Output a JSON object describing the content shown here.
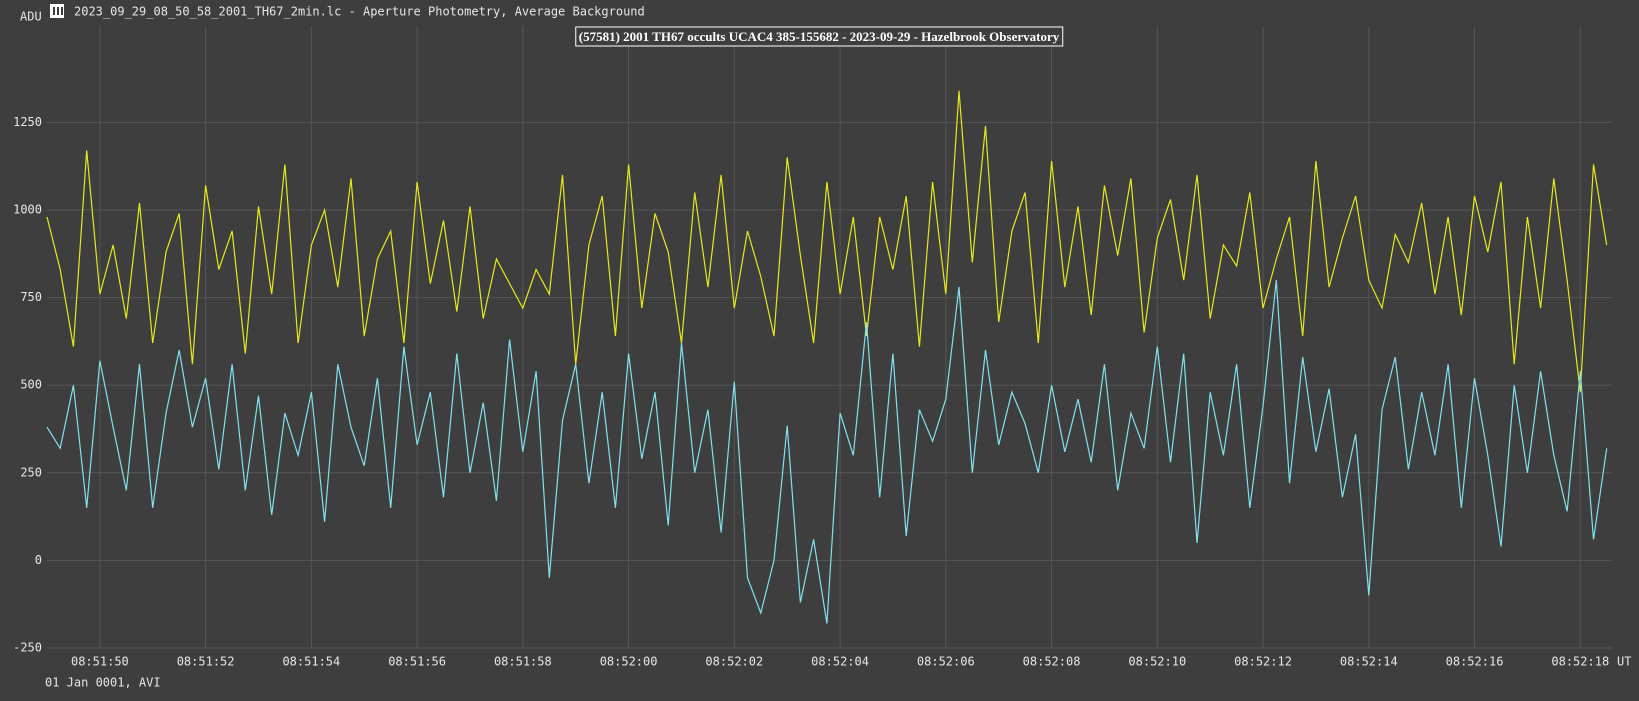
{
  "window_title": "2023_09_29_08_50_58_2001_TH67_2min.lc - Aperture Photometry, Average Background",
  "footer": "01 Jan 0001, AVI",
  "chart_data": {
    "type": "line",
    "title": "(57581) 2001 TH67 occults UCAC4 385-155682 - 2023-09-29 - Hazelbrook Observatory",
    "y_label": "ADU",
    "x_label": "UT",
    "x": [
      31909,
      31909.25,
      31909.5,
      31909.75,
      31910,
      31910.25,
      31910.5,
      31910.75,
      31911,
      31911.25,
      31911.5,
      31911.75,
      31912,
      31912.25,
      31912.5,
      31912.75,
      31913,
      31913.25,
      31913.5,
      31913.75,
      31914,
      31914.25,
      31914.5,
      31914.75,
      31915,
      31915.25,
      31915.5,
      31915.75,
      31916,
      31916.25,
      31916.5,
      31916.75,
      31917,
      31917.25,
      31917.5,
      31917.75,
      31918,
      31918.25,
      31918.5,
      31918.75,
      31919,
      31919.25,
      31919.5,
      31919.75,
      31920,
      31920.25,
      31920.5,
      31920.75,
      31921,
      31921.25,
      31921.5,
      31921.75,
      31922,
      31922.25,
      31922.5,
      31922.75,
      31923,
      31923.25,
      31923.5,
      31923.75,
      31924,
      31924.25,
      31924.5,
      31924.75,
      31925,
      31925.25,
      31925.5,
      31925.75,
      31926,
      31926.25,
      31926.5,
      31926.75,
      31927,
      31927.25,
      31927.5,
      31927.75,
      31928,
      31928.25,
      31928.5,
      31928.75,
      31929,
      31929.25,
      31929.5,
      31929.75,
      31930,
      31930.25,
      31930.5,
      31930.75,
      31931,
      31931.25,
      31931.5,
      31931.75,
      31932,
      31932.25,
      31932.5,
      31932.75,
      31933,
      31933.25,
      31933.5,
      31933.75,
      31934,
      31934.25,
      31934.5,
      31934.75,
      31935,
      31935.25,
      31935.5,
      31935.75,
      31936,
      31936.25,
      31936.5,
      31936.75,
      31937,
      31937.25,
      31937.5,
      31937.75,
      31938,
      31938.25,
      31938.5
    ],
    "series": [
      {
        "color": "#e8e81a",
        "values": [
          980,
          830,
          610,
          1170,
          760,
          900,
          690,
          1020,
          620,
          880,
          990,
          560,
          1070,
          830,
          940,
          590,
          1010,
          760,
          1130,
          620,
          900,
          1000,
          780,
          1090,
          640,
          860,
          940,
          620,
          1080,
          790,
          970,
          710,
          1010,
          690,
          860,
          790,
          720,
          830,
          760,
          1100,
          560,
          900,
          1040,
          640,
          1130,
          720,
          990,
          880,
          620,
          1050,
          780,
          1100,
          720,
          940,
          810,
          640,
          1150,
          870,
          620,
          1080,
          760,
          980,
          640,
          980,
          830,
          1040,
          610,
          1080,
          760,
          1340,
          850,
          1240,
          680,
          940,
          1050,
          620,
          1140,
          780,
          1010,
          700,
          1070,
          870,
          1090,
          650,
          920,
          1030,
          800,
          1100,
          690,
          900,
          840,
          1050,
          720,
          860,
          980,
          640,
          1140,
          780,
          920,
          1040,
          800,
          720,
          930,
          850,
          1020,
          760,
          980,
          700,
          1040,
          880,
          1080,
          560,
          980,
          720,
          1090,
          800,
          480,
          1130,
          900
        ]
      },
      {
        "color": "#7fe3ec",
        "values": [
          380,
          320,
          500,
          150,
          570,
          380,
          200,
          560,
          150,
          420,
          600,
          380,
          520,
          260,
          560,
          200,
          470,
          130,
          420,
          300,
          480,
          110,
          560,
          380,
          270,
          520,
          150,
          610,
          330,
          480,
          180,
          590,
          250,
          450,
          170,
          630,
          310,
          540,
          -50,
          400,
          560,
          220,
          480,
          150,
          590,
          290,
          480,
          100,
          620,
          250,
          430,
          80,
          510,
          -50,
          -150,
          0,
          385,
          -120,
          60,
          -180,
          420,
          300,
          680,
          180,
          590,
          70,
          430,
          340,
          460,
          780,
          250,
          600,
          330,
          480,
          390,
          250,
          500,
          310,
          460,
          280,
          560,
          200,
          420,
          320,
          610,
          280,
          590,
          50,
          480,
          300,
          560,
          150,
          440,
          800,
          220,
          580,
          310,
          490,
          180,
          360,
          -100,
          430,
          580,
          260,
          480,
          300,
          560,
          150,
          520,
          300,
          40,
          500,
          250,
          540,
          300,
          140,
          540,
          60,
          320
        ]
      }
    ],
    "xlim": [
      31909,
      31938.6
    ],
    "xticks": [
      {
        "value": 31910,
        "label": "08:51:50"
      },
      {
        "value": 31912,
        "label": "08:51:52"
      },
      {
        "value": 31914,
        "label": "08:51:54"
      },
      {
        "value": 31916,
        "label": "08:51:56"
      },
      {
        "value": 31918,
        "label": "08:51:58"
      },
      {
        "value": 31920,
        "label": "08:52:00"
      },
      {
        "value": 31922,
        "label": "08:52:02"
      },
      {
        "value": 31924,
        "label": "08:52:04"
      },
      {
        "value": 31926,
        "label": "08:52:06"
      },
      {
        "value": 31928,
        "label": "08:52:08"
      },
      {
        "value": 31930,
        "label": "08:52:10"
      },
      {
        "value": 31932,
        "label": "08:52:12"
      },
      {
        "value": 31934,
        "label": "08:52:14"
      },
      {
        "value": 31936,
        "label": "08:52:16"
      },
      {
        "value": 31938,
        "label": "08:52:18"
      }
    ],
    "ylim": [
      -250,
      1525
    ],
    "yticks": [
      -250,
      0,
      250,
      500,
      750,
      1000,
      1250
    ],
    "grid": true
  }
}
